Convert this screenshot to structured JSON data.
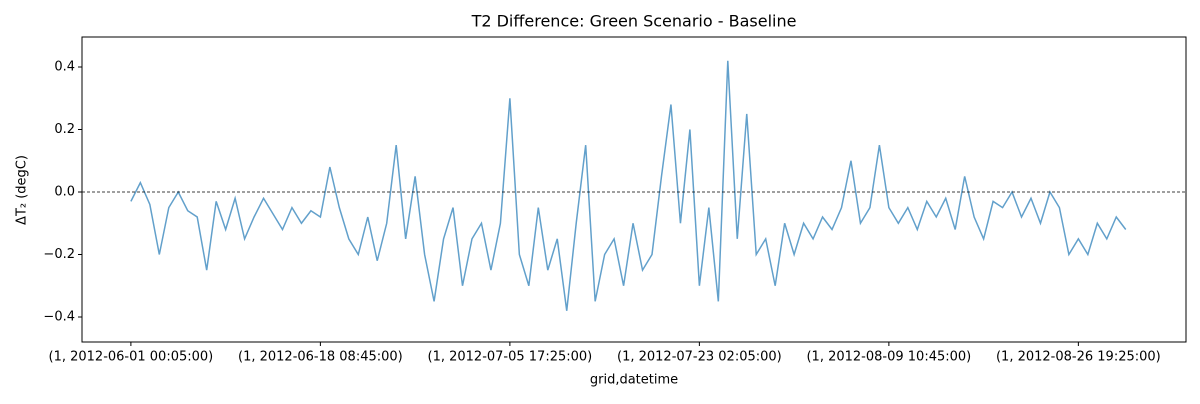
{
  "chart_data": {
    "type": "line",
    "title": "T2 Difference: Green Scenario - Baseline",
    "xlabel": "grid,datetime",
    "ylabel": "ΔT₂ (degC)",
    "x": [
      0,
      25,
      50,
      75,
      100,
      125,
      150,
      175,
      200,
      225,
      250,
      275,
      300,
      325,
      350,
      375,
      400,
      425,
      450,
      475,
      500,
      525,
      550,
      575,
      600,
      625,
      650,
      675,
      700,
      725,
      750,
      775,
      800,
      825,
      850,
      875,
      900,
      925,
      950,
      975,
      1000,
      1025,
      1050,
      1075,
      1100,
      1125,
      1150,
      1175,
      1200,
      1225,
      1250,
      1275,
      1300,
      1325,
      1350,
      1375,
      1400,
      1425,
      1450,
      1475,
      1500,
      1525,
      1550,
      1575,
      1600,
      1625,
      1650,
      1675,
      1700,
      1725,
      1750,
      1775,
      1800,
      1825,
      1850,
      1875,
      1900,
      1925,
      1950,
      1975,
      2000,
      2025,
      2050,
      2075,
      2100,
      2125,
      2150,
      2175,
      2200,
      2225,
      2250,
      2275,
      2300,
      2325,
      2350,
      2375,
      2400,
      2425,
      2450,
      2475,
      2500,
      2525,
      2550,
      2575,
      2600,
      2625
    ],
    "values": [
      -0.03,
      0.03,
      -0.04,
      -0.2,
      -0.05,
      0.0,
      -0.06,
      -0.08,
      -0.25,
      -0.03,
      -0.12,
      -0.02,
      -0.15,
      -0.08,
      -0.02,
      -0.07,
      -0.12,
      -0.05,
      -0.1,
      -0.06,
      -0.08,
      0.08,
      -0.05,
      -0.15,
      -0.2,
      -0.08,
      -0.22,
      -0.1,
      0.15,
      -0.15,
      0.05,
      -0.2,
      -0.35,
      -0.15,
      -0.05,
      -0.3,
      -0.15,
      -0.1,
      -0.25,
      -0.1,
      0.3,
      -0.2,
      -0.3,
      -0.05,
      -0.25,
      -0.15,
      -0.38,
      -0.1,
      0.15,
      -0.35,
      -0.2,
      -0.15,
      -0.3,
      -0.1,
      -0.25,
      -0.2,
      0.05,
      0.28,
      -0.1,
      0.2,
      -0.3,
      -0.05,
      -0.35,
      0.42,
      -0.15,
      0.25,
      -0.2,
      -0.15,
      -0.3,
      -0.1,
      -0.2,
      -0.1,
      -0.15,
      -0.08,
      -0.12,
      -0.05,
      0.1,
      -0.1,
      -0.05,
      0.15,
      -0.05,
      -0.1,
      -0.05,
      -0.12,
      -0.03,
      -0.08,
      -0.02,
      -0.12,
      0.05,
      -0.08,
      -0.15,
      -0.03,
      -0.05,
      0.0,
      -0.08,
      -0.02,
      -0.1,
      0.0,
      -0.05,
      -0.2,
      -0.15,
      -0.2,
      -0.1,
      -0.15,
      -0.08,
      -0.12
    ],
    "color": "#62a0cb",
    "xlim": [
      -129,
      2784
    ],
    "ylim": [
      -0.48,
      0.496
    ],
    "xticks": [
      {
        "value": 0,
        "label": "(1, 2012-06-01 00:05:00)"
      },
      {
        "value": 500,
        "label": "(1, 2012-06-18 08:45:00)"
      },
      {
        "value": 1000,
        "label": "(1, 2012-07-05 17:25:00)"
      },
      {
        "value": 1500,
        "label": "(1, 2012-07-23 02:05:00)"
      },
      {
        "value": 2000,
        "label": "(1, 2012-08-09 10:45:00)"
      },
      {
        "value": 2500,
        "label": "(1, 2012-08-26 19:25:00)"
      }
    ],
    "yticks": [
      {
        "value": -0.4,
        "label": "−0.4"
      },
      {
        "value": -0.2,
        "label": "−0.2"
      },
      {
        "value": 0,
        "label": "0.0"
      },
      0.2,
      0.4
    ],
    "reference_line": {
      "y": 0,
      "color": "#000000",
      "dashed": true
    }
  }
}
